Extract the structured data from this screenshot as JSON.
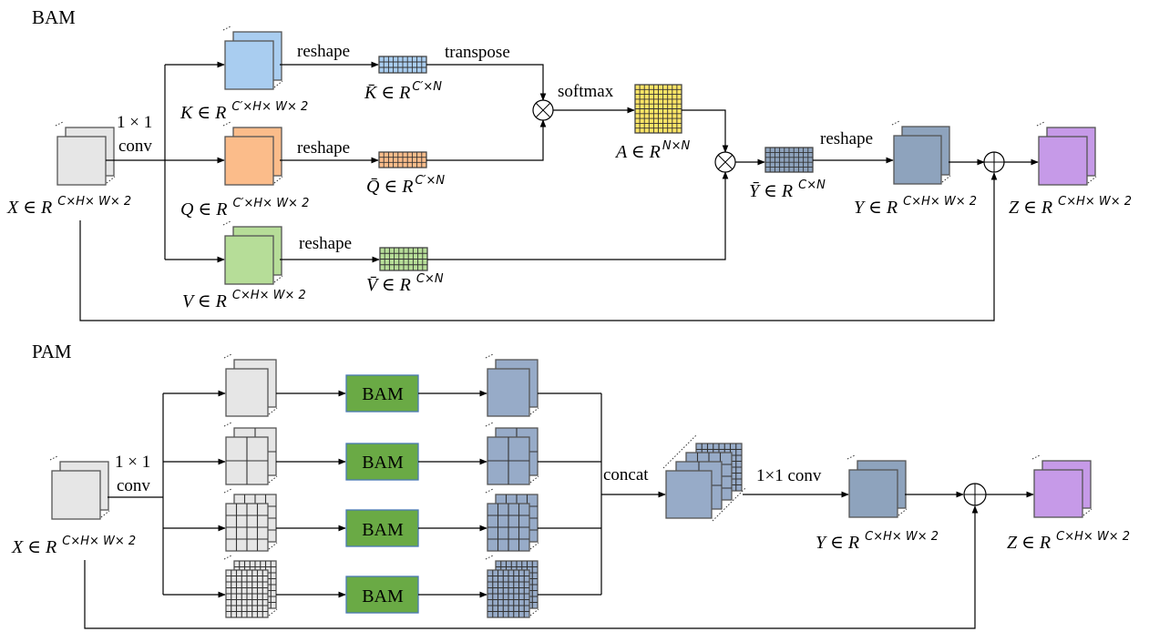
{
  "bam_section": {
    "title": "BAM",
    "conv_label_1": "1 × 1",
    "conv_label_2": "conv",
    "reshape_k": "reshape",
    "reshape_q": "reshape",
    "reshape_v": "reshape",
    "reshape_y": "reshape",
    "transpose": "transpose",
    "softmax": "softmax",
    "labels": {
      "x": {
        "main": "X ∈ R",
        "sup": "C×H× W× 2"
      },
      "k": {
        "main": "K ∈ R",
        "sup": "C′×H× W× 2"
      },
      "q": {
        "main": "Q ∈ R",
        "sup": "C′×H× W× 2"
      },
      "v": {
        "main": "V ∈ R",
        "sup": "C×H× W× 2"
      },
      "kbar": {
        "main": "K̄ ∈ R",
        "sup": "C′×N"
      },
      "qbar": {
        "main": "Q̄ ∈ R",
        "sup": "C′×N"
      },
      "vbar": {
        "main": "V̄ ∈ R",
        "sup": "C×N"
      },
      "a": {
        "main": "A ∈ R",
        "sup": "N×N"
      },
      "ybar": {
        "main": "Ȳ ∈ R",
        "sup": "C×N"
      },
      "y": {
        "main": "Y ∈ R",
        "sup": "C×H× W× 2"
      },
      "z": {
        "main": "Z ∈ R",
        "sup": "C×H× W× 2"
      }
    },
    "operators": {
      "multiply": "⊗",
      "add": "⊕"
    }
  },
  "pam_section": {
    "title": "PAM",
    "conv_label_1": "1 × 1",
    "conv_label_2": "conv",
    "bam_blocks": [
      "BAM",
      "BAM",
      "BAM",
      "BAM"
    ],
    "concat": "concat",
    "conv_after_concat": "1×1 conv",
    "labels": {
      "x": {
        "main": "X ∈ R",
        "sup": "C×H× W× 2"
      },
      "y": {
        "main": "Y ∈ R",
        "sup": "C×H× W× 2"
      },
      "z": {
        "main": "Z ∈ R",
        "sup": "C×H× W× 2"
      }
    },
    "grid_levels": [
      1,
      2,
      4,
      8
    ]
  },
  "colors": {
    "key": "#a9cdf0",
    "query": "#fbbc8a",
    "value": "#b6dd98",
    "attention": "#fde566",
    "output": "#8ea3bd",
    "result": "#c69ae8",
    "input": "#e6e6e6",
    "pam_feature": "#97abc8",
    "bam_block": "#6aaa45"
  }
}
